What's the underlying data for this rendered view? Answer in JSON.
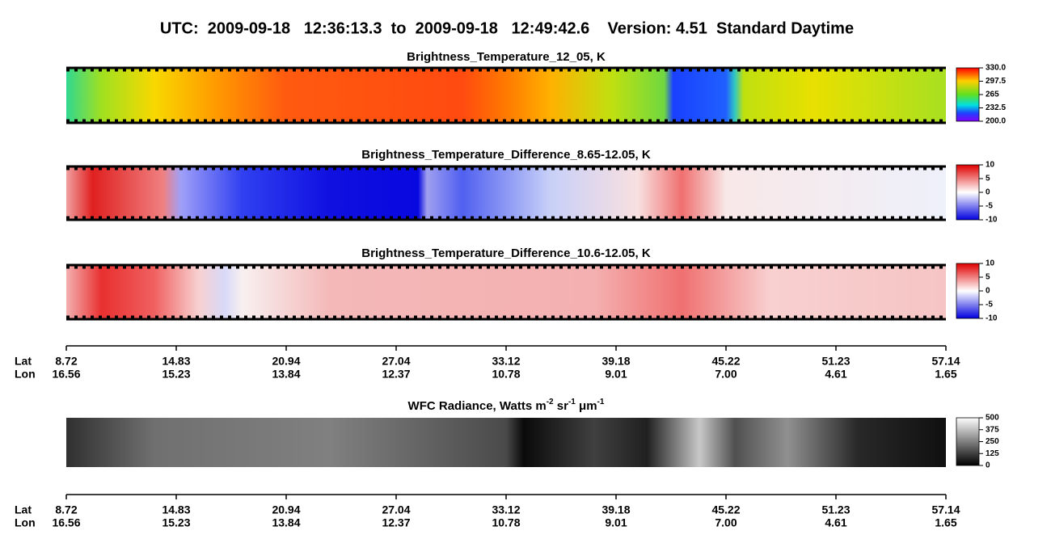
{
  "title": "UTC:  2009-09-18   12:36:13.3  to  2009-09-18   12:49:42.6    Version: 4.51  Standard Daytime",
  "panels": [
    {
      "title": "Brightness_Temperature_12_05, K",
      "colorbar_ticks": [
        {
          "value": 330,
          "label": "330.0"
        },
        297.5,
        265,
        232.5,
        {
          "value": 200,
          "label": "200.0"
        }
      ]
    },
    {
      "title": "Brightness_Temperature_Difference_8.65-12.05, K",
      "colorbar_ticks": [
        10,
        5,
        0,
        -5,
        -10
      ]
    },
    {
      "title": "Brightness_Temperature_Difference_10.6-12.05, K",
      "colorbar_ticks": [
        10,
        5,
        0,
        -5,
        -10
      ]
    },
    {
      "title_parts": [
        "WFC Radiance, Watts m",
        "-2",
        " sr",
        "-1",
        " μm",
        "-1"
      ],
      "colorbar_ticks": [
        500,
        375,
        250,
        125,
        0
      ]
    }
  ],
  "axes": [
    {
      "lat_label": "Lat",
      "lon_label": "Lon",
      "lat": [
        8.72,
        14.83,
        20.94,
        27.04,
        33.12,
        39.18,
        45.22,
        51.23,
        57.14
      ],
      "lon": [
        16.56,
        15.23,
        13.84,
        12.37,
        10.78,
        9.01,
        {
          "value": 7,
          "label": "7.00"
        },
        4.61,
        1.65
      ]
    },
    {
      "lat_label": "Lat",
      "lon_label": "Lon",
      "lat": [
        8.72,
        14.83,
        20.94,
        27.04,
        33.12,
        39.18,
        45.22,
        51.23,
        57.14
      ],
      "lon": [
        16.56,
        15.23,
        13.84,
        12.37,
        10.78,
        9.01,
        {
          "value": 7,
          "label": "7.00"
        },
        4.61,
        1.65
      ]
    }
  ]
}
